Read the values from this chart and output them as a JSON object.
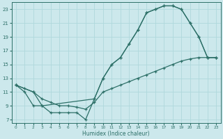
{
  "xlabel": "Humidex (Indice chaleur)",
  "xlim": [
    -0.5,
    23.5
  ],
  "ylim": [
    6.5,
    24.0
  ],
  "xticks": [
    0,
    1,
    2,
    3,
    4,
    5,
    6,
    7,
    8,
    9,
    10,
    11,
    12,
    13,
    14,
    15,
    16,
    17,
    18,
    19,
    20,
    21,
    22,
    23
  ],
  "yticks": [
    7,
    9,
    11,
    13,
    15,
    17,
    19,
    21,
    23
  ],
  "background_color": "#cce8ec",
  "grid_color": "#b0d8dc",
  "line_color": "#2d7068",
  "curve1_x": [
    0,
    1,
    2,
    3,
    4,
    5,
    6,
    7,
    8,
    9,
    10,
    11,
    12,
    13,
    14,
    15,
    16,
    17,
    18,
    19,
    20,
    21,
    22,
    23
  ],
  "curve1_y": [
    12,
    11,
    9,
    9,
    8,
    8,
    8,
    8,
    7,
    10,
    13,
    15,
    16,
    18,
    20,
    22.5,
    23,
    23.5,
    23.5,
    23,
    21,
    19,
    16,
    16
  ],
  "curve2_x": [
    0,
    2,
    3,
    9,
    10,
    11,
    12,
    13,
    14,
    15,
    16,
    17,
    18,
    19,
    20,
    21,
    22,
    23
  ],
  "curve2_y": [
    12,
    11,
    9,
    10,
    13,
    15,
    16,
    18,
    20,
    22.5,
    23,
    23.5,
    23.5,
    23,
    21,
    19,
    16,
    16
  ],
  "curve3_x": [
    0,
    1,
    2,
    3,
    4,
    5,
    6,
    7,
    8,
    9,
    10,
    11,
    12,
    13,
    14,
    15,
    16,
    17,
    18,
    19,
    20,
    21,
    22,
    23
  ],
  "curve3_y": [
    12,
    11.5,
    11,
    10,
    9.5,
    9,
    9,
    8.8,
    8.5,
    9.5,
    11,
    11.5,
    12,
    12.5,
    13,
    13.5,
    14,
    14.5,
    15,
    15.5,
    15.8,
    16,
    16,
    16
  ]
}
